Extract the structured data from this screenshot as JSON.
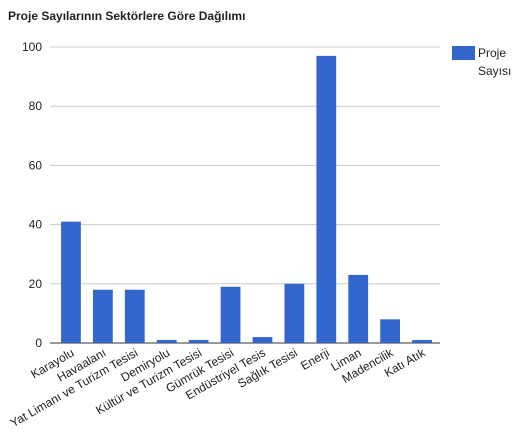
{
  "chart_data": {
    "type": "bar",
    "title": "Proje Sayılarının Sektörlere Göre Dağılımı",
    "categories": [
      "Karayolu",
      "Havaalanı",
      "Yat Limanı ve Turizm Tesisi",
      "Demiryolu",
      "Kültür ve Turizm Tesisi",
      "Gümrük Tesisi",
      "Endüstriyel Tesis",
      "Sağlık Tesisi",
      "Enerji",
      "Liman",
      "Madencilik",
      "Katı Atık"
    ],
    "series": [
      {
        "name": "Proje Sayısı",
        "color": "#3366cc",
        "values": [
          41,
          18,
          18,
          1,
          1,
          19,
          2,
          20,
          97,
          23,
          8,
          1
        ]
      }
    ],
    "ylim": [
      0,
      100
    ],
    "yticks": [
      0,
      20,
      40,
      60,
      80,
      100
    ],
    "grid": true,
    "legend": "right"
  }
}
